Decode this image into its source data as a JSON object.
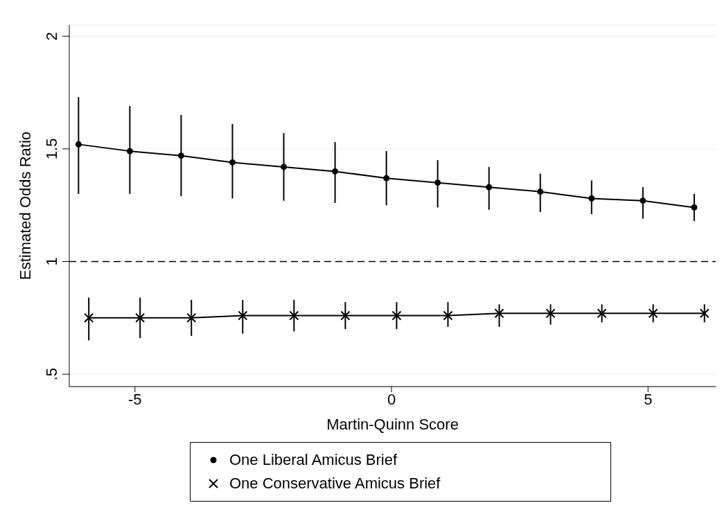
{
  "chart_data": {
    "type": "line",
    "xlabel": "Martin-Quinn Score",
    "ylabel": "Estimated Odds Ratio",
    "xlim": [
      -6.28,
      6.32
    ],
    "xticks": [
      -5,
      0,
      5
    ],
    "ylim": [
      0.445,
      2.05
    ],
    "yticks": [
      {
        "value": 0.5,
        "label": ".5"
      },
      1,
      1.5,
      2
    ],
    "grid": "y",
    "legend": "bottom",
    "series": [
      {
        "name": "One Liberal Amicus Brief",
        "color": "#000000",
        "marker": "circle",
        "x": [
          -6.1,
          -5.1,
          -4.1,
          -3.1,
          -2.1,
          -1.1,
          -0.1,
          0.9,
          1.9,
          2.9,
          3.9,
          4.9,
          5.9
        ],
        "values": [
          1.52,
          1.49,
          1.47,
          1.44,
          1.42,
          1.4,
          1.37,
          1.35,
          1.33,
          1.31,
          1.28,
          1.27,
          1.24
        ],
        "errors": [
          [
            1.3,
            1.73
          ],
          [
            1.3,
            1.69
          ],
          [
            1.29,
            1.65
          ],
          [
            1.28,
            1.61
          ],
          [
            1.27,
            1.57
          ],
          [
            1.26,
            1.53
          ],
          [
            1.25,
            1.49
          ],
          [
            1.24,
            1.45
          ],
          [
            1.23,
            1.42
          ],
          [
            1.22,
            1.39
          ],
          [
            1.21,
            1.36
          ],
          [
            1.19,
            1.33
          ],
          [
            1.18,
            1.3
          ]
        ]
      },
      {
        "name": "One Conservative Amicus Brief",
        "color": "#000000",
        "marker": "cross",
        "x": [
          -5.9,
          -4.9,
          -3.9,
          -2.9,
          -1.9,
          -0.9,
          0.1,
          1.1,
          2.1,
          3.1,
          4.1,
          5.1,
          6.1
        ],
        "values": [
          0.75,
          0.75,
          0.75,
          0.76,
          0.76,
          0.76,
          0.76,
          0.76,
          0.77,
          0.77,
          0.77,
          0.77,
          0.77
        ],
        "errors": [
          [
            0.65,
            0.84
          ],
          [
            0.66,
            0.84
          ],
          [
            0.67,
            0.83
          ],
          [
            0.68,
            0.83
          ],
          [
            0.69,
            0.83
          ],
          [
            0.7,
            0.82
          ],
          [
            0.7,
            0.82
          ],
          [
            0.71,
            0.82
          ],
          [
            0.71,
            0.81
          ],
          [
            0.72,
            0.81
          ],
          [
            0.73,
            0.81
          ],
          [
            0.73,
            0.81
          ],
          [
            0.73,
            0.81
          ]
        ]
      }
    ],
    "ref_lines": [
      {
        "axis": "y",
        "value": 1,
        "line_style": "dashed",
        "color": "#000000"
      }
    ]
  }
}
